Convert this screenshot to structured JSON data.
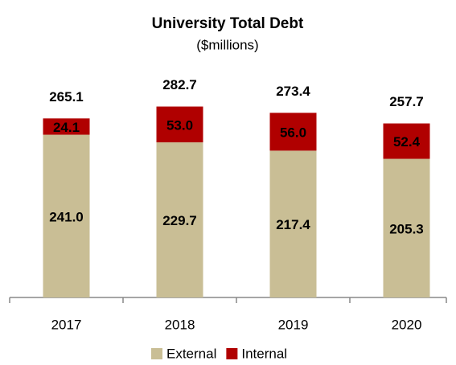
{
  "chart_data": {
    "type": "stacked_bar",
    "title": "University Total Debt",
    "subtitle": "($millions)",
    "categories": [
      "2017",
      "2018",
      "2019",
      "2020"
    ],
    "series": [
      {
        "name": "External",
        "color": "#c9be95",
        "values": [
          241.0,
          229.7,
          217.4,
          205.3
        ],
        "value_labels": [
          "241.0",
          "229.7",
          "217.4",
          "205.3"
        ]
      },
      {
        "name": "Internal",
        "color": "#b00000",
        "values": [
          24.1,
          53.0,
          56.0,
          52.4
        ],
        "value_labels": [
          "24.1",
          "53.0",
          "56.0",
          "52.4"
        ]
      }
    ],
    "totals": [
      265.1,
      282.7,
      273.4,
      257.7
    ],
    "ylim": [
      0,
      300
    ],
    "legend": "bottom"
  }
}
